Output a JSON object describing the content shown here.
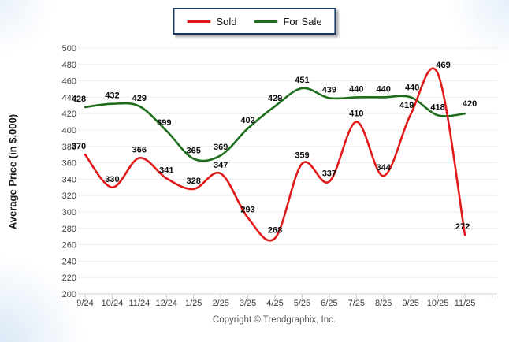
{
  "legend": {
    "items": [
      {
        "label": "Sold",
        "color": "#e01a1a"
      },
      {
        "label": "For Sale",
        "color": "#1d6d1d"
      }
    ]
  },
  "chart_data": {
    "type": "line",
    "title": "",
    "xlabel": "",
    "ylabel": "Average Price (in $,000)",
    "categories": [
      "9/24",
      "10/24",
      "11/24",
      "12/24",
      "1/25",
      "2/25",
      "3/25",
      "4/25",
      "5/25",
      "6/25",
      "7/25",
      "8/25",
      "9/25",
      "10/25",
      "11/25"
    ],
    "series": [
      {
        "name": "Sold",
        "color": "#e01a1a",
        "values": [
          370,
          330,
          366,
          341,
          328,
          347,
          293,
          268,
          359,
          337,
          410,
          344,
          419,
          469,
          272
        ]
      },
      {
        "name": "For Sale",
        "color": "#1d6d1d",
        "values": [
          428,
          432,
          429,
          399,
          365,
          369,
          402,
          429,
          451,
          439,
          440,
          440,
          440,
          418,
          420
        ]
      }
    ],
    "ylim": [
      200,
      500
    ],
    "ytick_step": 20,
    "grid": true,
    "smooth": true,
    "data_labels": true,
    "legend_position": "top-center"
  },
  "footer": {
    "copyright": "Copyright © Trendgraphix, Inc."
  },
  "colors": {
    "grid": "#ededed",
    "axis_line": "#d2d2d2",
    "tick": "#c9c9c9",
    "tick_label": "#404040",
    "data_label": "#0d0d0d",
    "legend_border": "#17365d",
    "background": "#ffffff"
  }
}
